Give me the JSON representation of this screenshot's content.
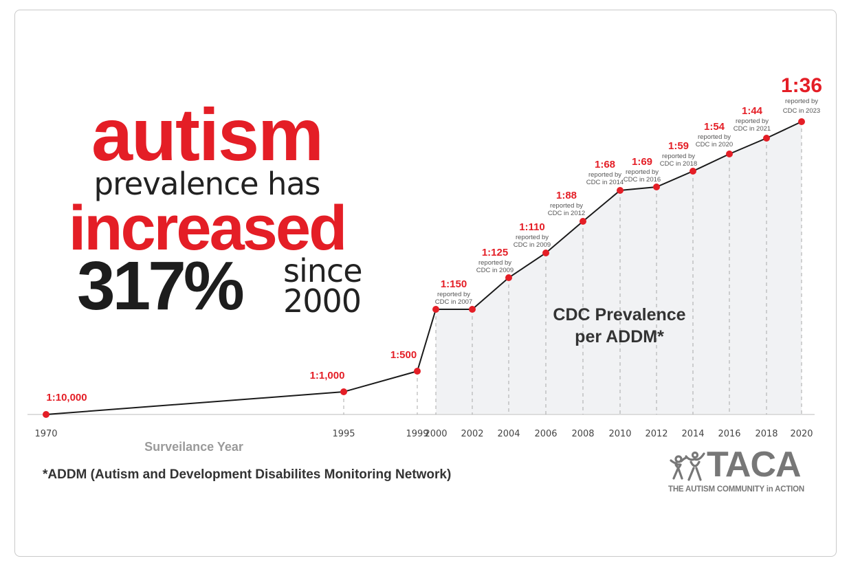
{
  "headline": {
    "line1": "autism",
    "line2": "prevalence has",
    "line3": "increased",
    "percent": "317%",
    "since_line1": "since",
    "since_line2": "2000"
  },
  "footnote": "*ADDM (Autism and Development Disabilites Monitoring Network)",
  "logo": {
    "name": "TACA",
    "tagline": "THE AUTISM COMMUNITY in ACTION"
  },
  "colors": {
    "accent": "#e41e26",
    "dark": "#1d1d1d",
    "line": "#1a1a1a",
    "area": "#f1f2f4",
    "axis": "#dddddd",
    "muted": "#9a9a9a"
  },
  "chart_data": {
    "type": "line",
    "title": "CDC Prevalence per ADDM*",
    "xlabel": "Surveilance Year",
    "ylabel": "",
    "x_ticks": [
      "1970",
      "1995",
      "1999",
      "2000",
      "2002",
      "2004",
      "2006",
      "2008",
      "2010",
      "2012",
      "2014",
      "2016",
      "2018",
      "2020"
    ],
    "grid": false,
    "legend": "none",
    "series": [
      {
        "name": "Autism prevalence",
        "points": [
          {
            "year": 1970,
            "ratio": "1:10,000",
            "one_in": 10000,
            "note": ""
          },
          {
            "year": 1995,
            "ratio": "1:1,000",
            "one_in": 1000,
            "note": ""
          },
          {
            "year": 1999,
            "ratio": "1:500",
            "one_in": 500,
            "note": ""
          },
          {
            "year": 2000,
            "ratio": "1:150",
            "one_in": 150,
            "note_line1": "reported by",
            "note_line2": "CDC in 2007"
          },
          {
            "year": 2002,
            "ratio": "",
            "one_in": 150,
            "note": ""
          },
          {
            "year": 2004,
            "ratio": "1:125",
            "one_in": 125,
            "note_line1": "reported by",
            "note_line2": "CDC in 2009"
          },
          {
            "year": 2006,
            "ratio": "1:110",
            "one_in": 110,
            "note_line1": "reported by",
            "note_line2": "CDC in 2009"
          },
          {
            "year": 2008,
            "ratio": "1:88",
            "one_in": 88,
            "note_line1": "reported by",
            "note_line2": "CDC in 2012"
          },
          {
            "year": 2010,
            "ratio": "1:68",
            "one_in": 68,
            "note_line1": "reported by",
            "note_line2": "CDC in 2014"
          },
          {
            "year": 2012,
            "ratio": "1:69",
            "one_in": 69,
            "note_line1": "reported by",
            "note_line2": "CDC in 2016"
          },
          {
            "year": 2014,
            "ratio": "1:59",
            "one_in": 59,
            "note_line1": "reported by",
            "note_line2": "CDC in 2018"
          },
          {
            "year": 2016,
            "ratio": "1:54",
            "one_in": 54,
            "note_line1": "reported by",
            "note_line2": "CDC in 2020"
          },
          {
            "year": 2018,
            "ratio": "1:44",
            "one_in": 44,
            "note_line1": "reported by",
            "note_line2": "CDC in 2021"
          },
          {
            "year": 2020,
            "ratio": "1:36",
            "one_in": 36,
            "note_line1": "reported by",
            "note_line2": "CDC in 2023"
          }
        ]
      }
    ],
    "annotation_line1": "CDC Prevalence",
    "annotation_line2": "per ADDM*"
  }
}
